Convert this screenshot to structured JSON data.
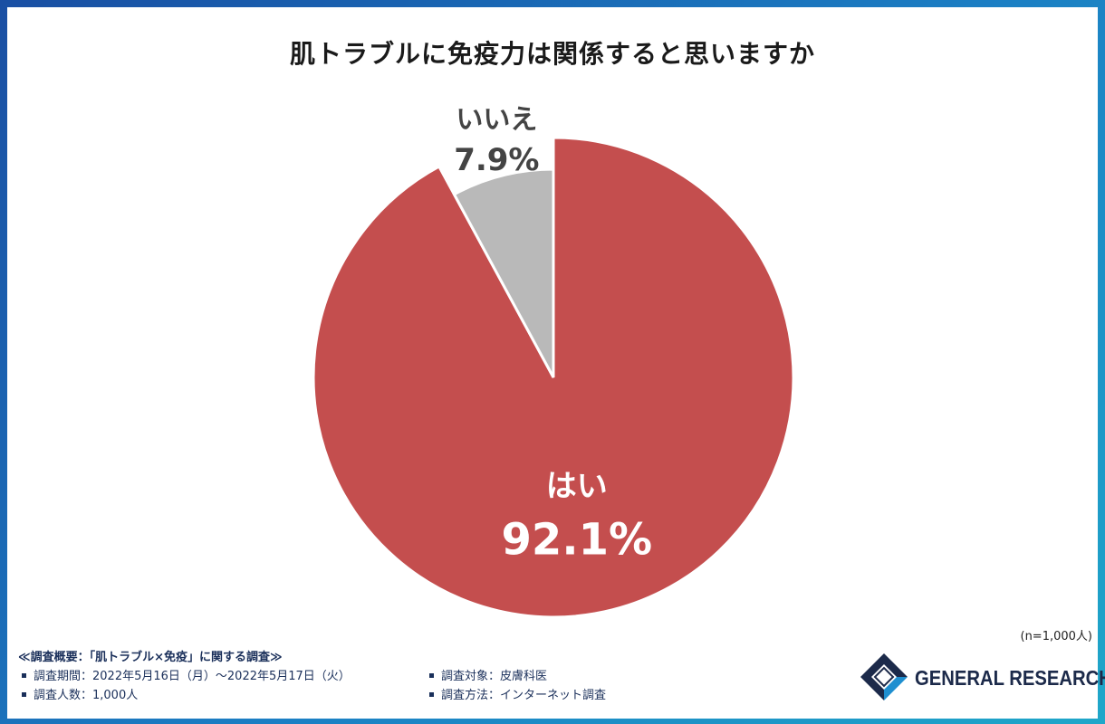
{
  "title": "肌トラブルに免疫力は関係すると思いますか",
  "chart_data": {
    "type": "pie",
    "title": "肌トラブルに免疫力は関係すると思いますか",
    "slices": [
      {
        "label": "はい",
        "value": 92.1,
        "display": "92.1%",
        "color": "#c44e4e",
        "label_color": "#ffffff"
      },
      {
        "label": "いいえ",
        "value": 7.9,
        "display": "7.9%",
        "color": "#b9b9b9",
        "label_color": "#444444"
      }
    ],
    "start_angle_deg": 0,
    "direction": "clockwise",
    "exploded": "いいえ"
  },
  "note": "(n=1,000人)",
  "survey": {
    "heading": "≪調査概要：「肌トラブル×免疫」に関する調査≫",
    "period": "調査期間：2022年5月16日（月）～2022年5月17日（火）",
    "target": "調査対象：皮膚科医",
    "count": "調査人数：1,000人",
    "method": "調査方法：インターネット調査"
  },
  "logo": {
    "text": "GENERAL RESEARCH"
  },
  "colors": {
    "frame_start": "#1a4fa3",
    "frame_end": "#1fa7c9",
    "title_text": "#1a1a1a",
    "survey_text": "#1a2f5a"
  }
}
